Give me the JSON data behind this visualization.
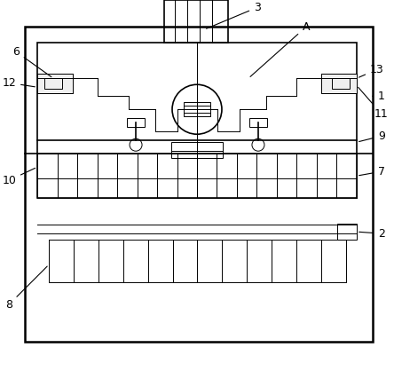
{
  "bg_color": "#ffffff",
  "line_color": "#000000",
  "lw_outer": 1.8,
  "lw_main": 1.2,
  "lw_thin": 0.7,
  "fig_w": 4.44,
  "fig_h": 4.18,
  "dpi": 100
}
